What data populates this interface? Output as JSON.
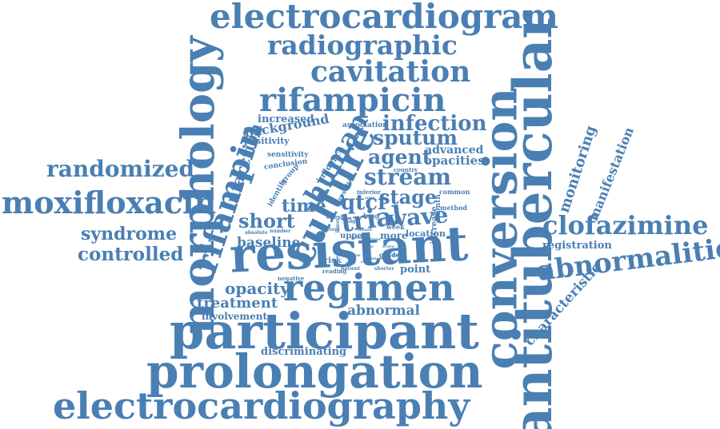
{
  "word_color": "#4a7fb3",
  "background": "#ffffff",
  "words": {
    "electrocardiogram": "electrocardiogram",
    "radiographic": "radiographic",
    "cavitation": "cavitation",
    "rifampicin": "rifampicin",
    "morphology": "morphology",
    "antitubercular": "antitubercular",
    "conversion": "conversion",
    "culture": "culture",
    "resistant": "resistant",
    "regimen": "regimen",
    "participant": "participant",
    "prolongation": "prolongation",
    "electrocardiography": "electrocardiography",
    "rifampin": "rifampin",
    "moxifloxacin": "moxifloxacin",
    "randomized": "randomized",
    "syndrome": "syndrome",
    "controlled": "controlled",
    "clofazimine": "clofazimine",
    "abnormalities": "abnormalities",
    "infection": "infection",
    "sputum": "sputum",
    "agent": "agent",
    "stream": "stream",
    "stage": "stage",
    "human": "human",
    "time": "time",
    "qtcf": "qtcf",
    "trial": "trial",
    "wave": "wave",
    "short": "short",
    "baseline": "baseline",
    "opacity": "opacity",
    "treatment": "treatment",
    "abnormal": "abnormal",
    "involvement": "involvement",
    "discriminating": "discriminating",
    "increased": "increased",
    "background": "background",
    "positivity": "positivity",
    "infarction": "infarction",
    "monitoring": "monitoring",
    "manifestation": "manifestation",
    "registration": "registration",
    "characteristic": "characteristic",
    "advanced": "advanced",
    "opacities": "opacities",
    "association": "association",
    "sensitivity": "sensitivity",
    "conclusion": "conclusion",
    "group": "group",
    "influence": "influence",
    "identify": "identify",
    "country": "country",
    "result": "result",
    "inferior": "inferior",
    "common": "common",
    "month": "month",
    "increase": "increase",
    "method": "method",
    "location": "location",
    "more": "more",
    "upper": "upper",
    "risk": "risk",
    "point": "point",
    "reading": "reading",
    "patient": "patient",
    "shorter": "shorter",
    "negative": "negative",
    "number": "number",
    "absolute": "absolute",
    "extent": "extent",
    "week": "week",
    "grade": "grade",
    "lung": "lung",
    "chest": "chest",
    "lower": "lower",
    "edge": "edge",
    "mixed": "mixed",
    "duration": "duration",
    "form": "form",
    "type": "type",
    "score": "score",
    "early": "early",
    "size": "size",
    "mean": "mean",
    "case": "case",
    "area": "area",
    "zone": "zone"
  }
}
